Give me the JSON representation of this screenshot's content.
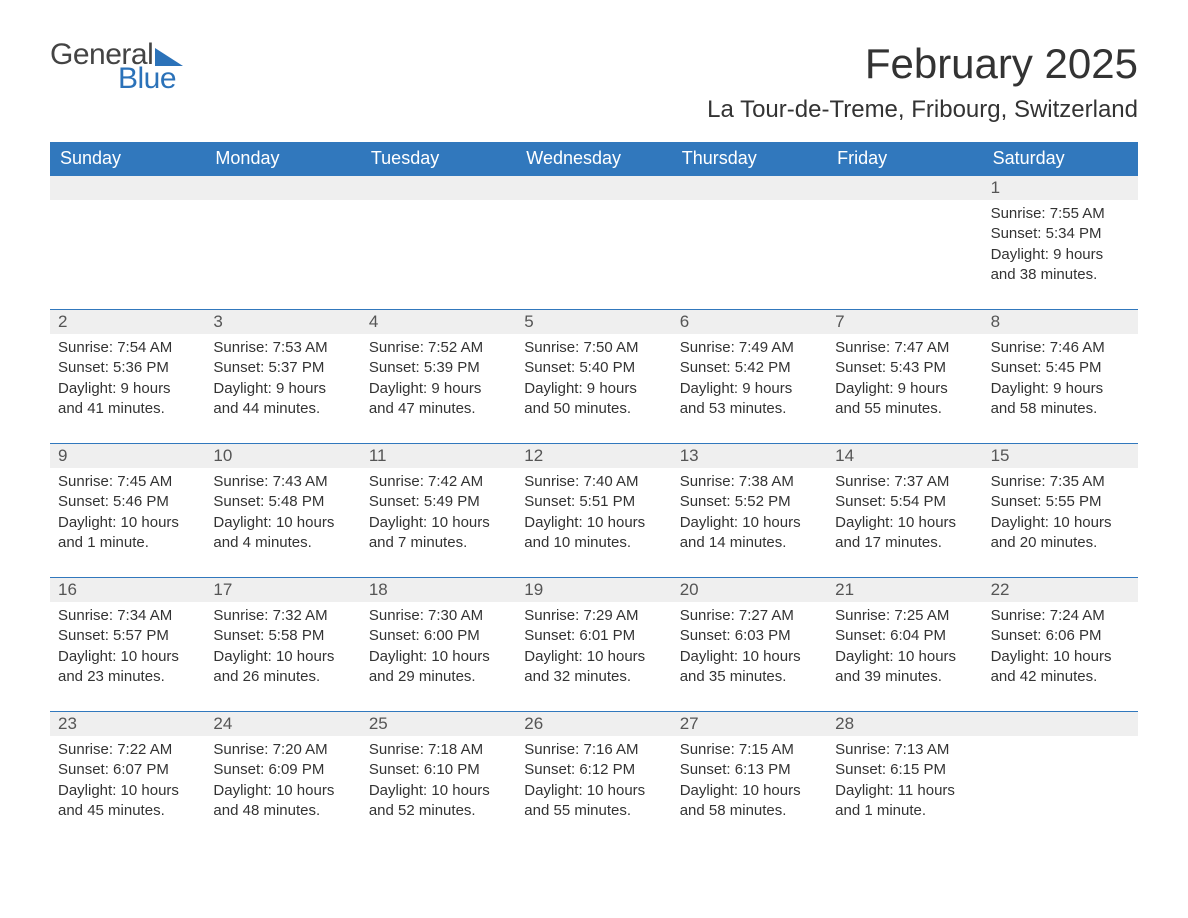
{
  "logo": {
    "text1": "General",
    "text2": "Blue"
  },
  "header": {
    "month_title": "February 2025",
    "location": "La Tour-de-Treme, Fribourg, Switzerland"
  },
  "colors": {
    "header_bar": "#3178bd",
    "header_text": "#ffffff",
    "numrow_bg": "#efefef",
    "week_border": "#3178bd",
    "body_text": "#333333",
    "logo_gray": "#444444",
    "logo_blue": "#2b72b9",
    "page_bg": "#ffffff"
  },
  "daynames": [
    "Sunday",
    "Monday",
    "Tuesday",
    "Wednesday",
    "Thursday",
    "Friday",
    "Saturday"
  ],
  "weeks": [
    {
      "cells": [
        {
          "num": "",
          "lines": [
            "",
            "",
            "",
            ""
          ]
        },
        {
          "num": "",
          "lines": [
            "",
            "",
            "",
            ""
          ]
        },
        {
          "num": "",
          "lines": [
            "",
            "",
            "",
            ""
          ]
        },
        {
          "num": "",
          "lines": [
            "",
            "",
            "",
            ""
          ]
        },
        {
          "num": "",
          "lines": [
            "",
            "",
            "",
            ""
          ]
        },
        {
          "num": "",
          "lines": [
            "",
            "",
            "",
            ""
          ]
        },
        {
          "num": "1",
          "lines": [
            "Sunrise: 7:55 AM",
            "Sunset: 5:34 PM",
            "Daylight: 9 hours",
            "and 38 minutes."
          ]
        }
      ]
    },
    {
      "cells": [
        {
          "num": "2",
          "lines": [
            "Sunrise: 7:54 AM",
            "Sunset: 5:36 PM",
            "Daylight: 9 hours",
            "and 41 minutes."
          ]
        },
        {
          "num": "3",
          "lines": [
            "Sunrise: 7:53 AM",
            "Sunset: 5:37 PM",
            "Daylight: 9 hours",
            "and 44 minutes."
          ]
        },
        {
          "num": "4",
          "lines": [
            "Sunrise: 7:52 AM",
            "Sunset: 5:39 PM",
            "Daylight: 9 hours",
            "and 47 minutes."
          ]
        },
        {
          "num": "5",
          "lines": [
            "Sunrise: 7:50 AM",
            "Sunset: 5:40 PM",
            "Daylight: 9 hours",
            "and 50 minutes."
          ]
        },
        {
          "num": "6",
          "lines": [
            "Sunrise: 7:49 AM",
            "Sunset: 5:42 PM",
            "Daylight: 9 hours",
            "and 53 minutes."
          ]
        },
        {
          "num": "7",
          "lines": [
            "Sunrise: 7:47 AM",
            "Sunset: 5:43 PM",
            "Daylight: 9 hours",
            "and 55 minutes."
          ]
        },
        {
          "num": "8",
          "lines": [
            "Sunrise: 7:46 AM",
            "Sunset: 5:45 PM",
            "Daylight: 9 hours",
            "and 58 minutes."
          ]
        }
      ]
    },
    {
      "cells": [
        {
          "num": "9",
          "lines": [
            "Sunrise: 7:45 AM",
            "Sunset: 5:46 PM",
            "Daylight: 10 hours",
            "and 1 minute."
          ]
        },
        {
          "num": "10",
          "lines": [
            "Sunrise: 7:43 AM",
            "Sunset: 5:48 PM",
            "Daylight: 10 hours",
            "and 4 minutes."
          ]
        },
        {
          "num": "11",
          "lines": [
            "Sunrise: 7:42 AM",
            "Sunset: 5:49 PM",
            "Daylight: 10 hours",
            "and 7 minutes."
          ]
        },
        {
          "num": "12",
          "lines": [
            "Sunrise: 7:40 AM",
            "Sunset: 5:51 PM",
            "Daylight: 10 hours",
            "and 10 minutes."
          ]
        },
        {
          "num": "13",
          "lines": [
            "Sunrise: 7:38 AM",
            "Sunset: 5:52 PM",
            "Daylight: 10 hours",
            "and 14 minutes."
          ]
        },
        {
          "num": "14",
          "lines": [
            "Sunrise: 7:37 AM",
            "Sunset: 5:54 PM",
            "Daylight: 10 hours",
            "and 17 minutes."
          ]
        },
        {
          "num": "15",
          "lines": [
            "Sunrise: 7:35 AM",
            "Sunset: 5:55 PM",
            "Daylight: 10 hours",
            "and 20 minutes."
          ]
        }
      ]
    },
    {
      "cells": [
        {
          "num": "16",
          "lines": [
            "Sunrise: 7:34 AM",
            "Sunset: 5:57 PM",
            "Daylight: 10 hours",
            "and 23 minutes."
          ]
        },
        {
          "num": "17",
          "lines": [
            "Sunrise: 7:32 AM",
            "Sunset: 5:58 PM",
            "Daylight: 10 hours",
            "and 26 minutes."
          ]
        },
        {
          "num": "18",
          "lines": [
            "Sunrise: 7:30 AM",
            "Sunset: 6:00 PM",
            "Daylight: 10 hours",
            "and 29 minutes."
          ]
        },
        {
          "num": "19",
          "lines": [
            "Sunrise: 7:29 AM",
            "Sunset: 6:01 PM",
            "Daylight: 10 hours",
            "and 32 minutes."
          ]
        },
        {
          "num": "20",
          "lines": [
            "Sunrise: 7:27 AM",
            "Sunset: 6:03 PM",
            "Daylight: 10 hours",
            "and 35 minutes."
          ]
        },
        {
          "num": "21",
          "lines": [
            "Sunrise: 7:25 AM",
            "Sunset: 6:04 PM",
            "Daylight: 10 hours",
            "and 39 minutes."
          ]
        },
        {
          "num": "22",
          "lines": [
            "Sunrise: 7:24 AM",
            "Sunset: 6:06 PM",
            "Daylight: 10 hours",
            "and 42 minutes."
          ]
        }
      ]
    },
    {
      "cells": [
        {
          "num": "23",
          "lines": [
            "Sunrise: 7:22 AM",
            "Sunset: 6:07 PM",
            "Daylight: 10 hours",
            "and 45 minutes."
          ]
        },
        {
          "num": "24",
          "lines": [
            "Sunrise: 7:20 AM",
            "Sunset: 6:09 PM",
            "Daylight: 10 hours",
            "and 48 minutes."
          ]
        },
        {
          "num": "25",
          "lines": [
            "Sunrise: 7:18 AM",
            "Sunset: 6:10 PM",
            "Daylight: 10 hours",
            "and 52 minutes."
          ]
        },
        {
          "num": "26",
          "lines": [
            "Sunrise: 7:16 AM",
            "Sunset: 6:12 PM",
            "Daylight: 10 hours",
            "and 55 minutes."
          ]
        },
        {
          "num": "27",
          "lines": [
            "Sunrise: 7:15 AM",
            "Sunset: 6:13 PM",
            "Daylight: 10 hours",
            "and 58 minutes."
          ]
        },
        {
          "num": "28",
          "lines": [
            "Sunrise: 7:13 AM",
            "Sunset: 6:15 PM",
            "Daylight: 11 hours",
            "and 1 minute."
          ]
        },
        {
          "num": "",
          "lines": [
            "",
            "",
            "",
            ""
          ]
        }
      ]
    }
  ]
}
